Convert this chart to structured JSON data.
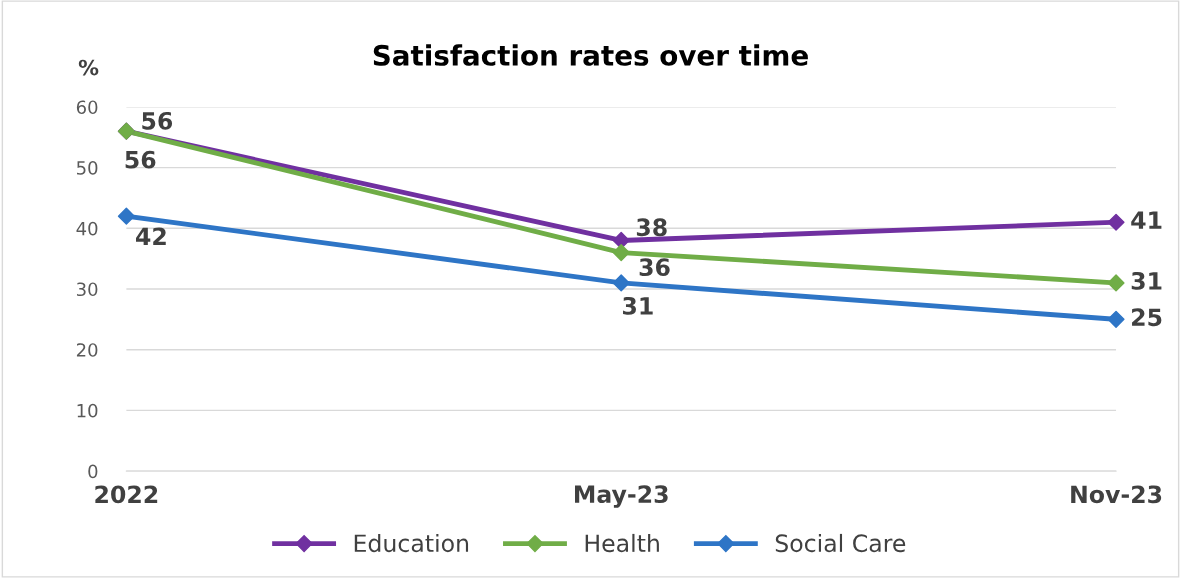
{
  "chart_data": {
    "type": "line",
    "title": "Satisfaction rates over time",
    "ylabel": "%",
    "categories": [
      "2022",
      "May-23",
      "Nov-23"
    ],
    "series": [
      {
        "name": "Education",
        "color": "#7030a0",
        "values": [
          56,
          38,
          41
        ]
      },
      {
        "name": "Health",
        "color": "#70ad47",
        "values": [
          56,
          36,
          31
        ]
      },
      {
        "name": "Social Care",
        "color": "#2e75c6",
        "values": [
          42,
          31,
          25
        ]
      }
    ],
    "ylim": [
      0,
      60
    ],
    "yticks": [
      0,
      10,
      20,
      30,
      40,
      50,
      60
    ],
    "grid": "y",
    "legend": "bottom",
    "marker": "diamond",
    "line_style": "solid",
    "data_labels": true
  }
}
